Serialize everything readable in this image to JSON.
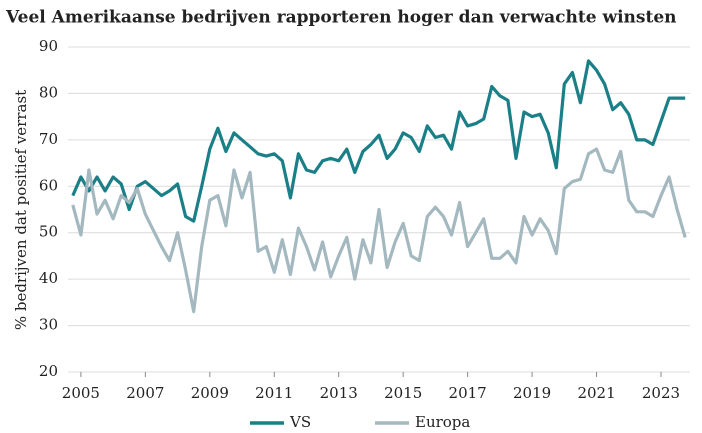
{
  "chart_data": {
    "type": "line",
    "title": "Veel Amerikaanse bedrijven rapporteren hoger dan verwachte winsten",
    "y_label": "% bedrijven dat positief verrast",
    "x": [
      2004.75,
      2005,
      2005.25,
      2005.5,
      2005.75,
      2006,
      2006.25,
      2006.5,
      2006.75,
      2007,
      2007.25,
      2007.5,
      2007.75,
      2008,
      2008.25,
      2008.5,
      2008.75,
      2009,
      2009.25,
      2009.5,
      2009.75,
      2010,
      2010.25,
      2010.5,
      2010.75,
      2011,
      2011.25,
      2011.5,
      2011.75,
      2012,
      2012.25,
      2012.5,
      2012.75,
      2013,
      2013.25,
      2013.5,
      2013.75,
      2014,
      2014.25,
      2014.5,
      2014.75,
      2015,
      2015.25,
      2015.5,
      2015.75,
      2016,
      2016.25,
      2016.5,
      2016.75,
      2017,
      2017.25,
      2017.5,
      2017.75,
      2018,
      2018.25,
      2018.5,
      2018.75,
      2019,
      2019.25,
      2019.5,
      2019.75,
      2020,
      2020.25,
      2020.5,
      2020.75,
      2021,
      2021.25,
      2021.5,
      2021.75,
      2022,
      2022.25,
      2022.5,
      2022.75,
      2023,
      2023.25,
      2023.5,
      2023.75
    ],
    "series": [
      {
        "name": "VS",
        "color": "#1b7f87",
        "values": [
          58,
          62,
          59,
          62,
          59,
          62,
          60.5,
          55,
          60,
          61,
          59.5,
          58,
          59,
          60.5,
          53.5,
          52.5,
          60,
          68,
          72.5,
          67.5,
          71.5,
          70,
          68.5,
          67,
          66.5,
          67,
          65.5,
          57.5,
          67,
          63.5,
          63,
          65.5,
          66,
          65.5,
          68,
          63,
          67.5,
          69,
          71,
          66,
          68,
          71.5,
          70.5,
          67.5,
          73,
          70.5,
          71,
          68,
          76,
          73,
          73.5,
          74.5,
          81.5,
          79.5,
          78.5,
          66,
          76,
          75,
          75.5,
          71.5,
          64,
          82,
          84.5,
          78,
          87,
          85,
          82,
          76.5,
          78,
          75.5,
          70,
          70,
          69,
          74,
          79,
          79,
          79
        ]
      },
      {
        "name": "Europa",
        "color": "#a4b8c0",
        "values": [
          56,
          49.5,
          63.5,
          54,
          57,
          53,
          58,
          56.5,
          59.5,
          54,
          50.5,
          47,
          44,
          50,
          42,
          33,
          47,
          57,
          58,
          51.5,
          63.5,
          57.5,
          63,
          46,
          47,
          41.5,
          48.5,
          41,
          51,
          47,
          42,
          48,
          40.5,
          45,
          49,
          40,
          48.5,
          43.5,
          55,
          42.5,
          48,
          52,
          45,
          44,
          53.5,
          55.5,
          53.5,
          49.5,
          56.5,
          47,
          50,
          53,
          44.5,
          44.5,
          46,
          43.5,
          53.5,
          49.5,
          53,
          50.5,
          45.5,
          59.5,
          61,
          61.5,
          67,
          68,
          63.5,
          63,
          67.5,
          57,
          54.5,
          54.5,
          53.5,
          58,
          62,
          55,
          49
        ]
      }
    ],
    "xlim": [
      2004.6,
      2023.9
    ],
    "xticks": [
      2005,
      2007,
      2009,
      2011,
      2013,
      2015,
      2017,
      2019,
      2021,
      2023
    ],
    "ylim": [
      20,
      90
    ],
    "yticks": [
      20,
      30,
      40,
      50,
      60,
      70,
      80,
      90
    ],
    "grid": true,
    "legend": "bottom"
  }
}
